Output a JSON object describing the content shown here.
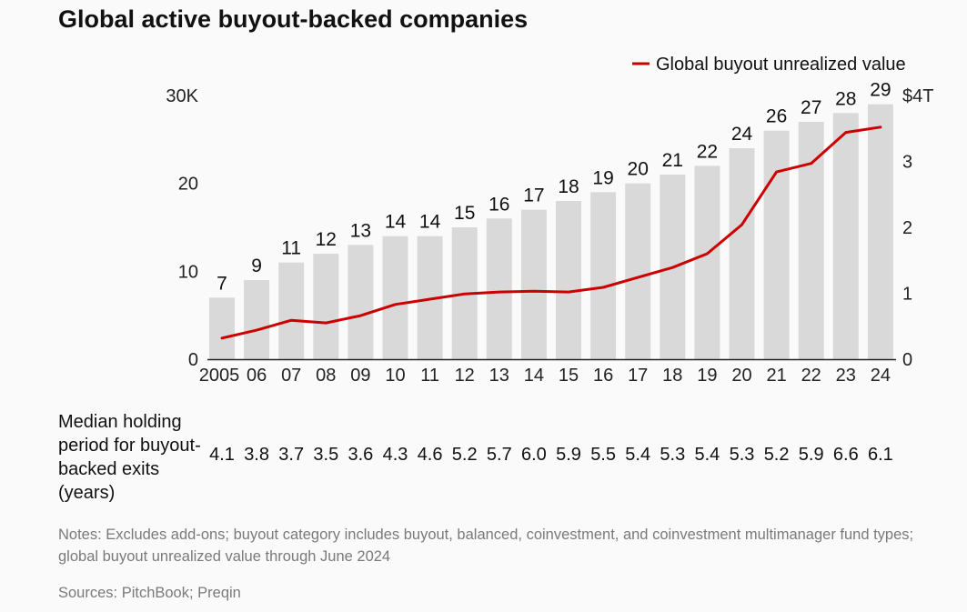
{
  "title": "Global active buyout-backed companies",
  "chart_data": {
    "type": "bar",
    "categories": [
      "2005",
      "06",
      "07",
      "08",
      "09",
      "10",
      "11",
      "12",
      "13",
      "14",
      "15",
      "16",
      "17",
      "18",
      "19",
      "20",
      "21",
      "22",
      "23",
      "24"
    ],
    "series": [
      {
        "type": "bar",
        "values": [
          7,
          9,
          11,
          12,
          13,
          14,
          14,
          15,
          16,
          17,
          18,
          19,
          20,
          21,
          22,
          24,
          26,
          27,
          28,
          29
        ],
        "color": "#d9d9d9",
        "axis": "left"
      },
      {
        "name": "Global buyout unrealized value",
        "type": "line",
        "values": [
          0.32,
          0.44,
          0.59,
          0.55,
          0.66,
          0.83,
          0.91,
          0.99,
          1.02,
          1.03,
          1.02,
          1.09,
          1.24,
          1.39,
          1.6,
          2.04,
          2.84,
          2.97,
          3.44,
          3.52
        ],
        "color": "#cc0000",
        "axis": "right"
      }
    ],
    "left_axis": {
      "ticks": [
        "0",
        "10",
        "20",
        "30K"
      ],
      "tick_values": [
        0,
        10,
        20,
        30
      ],
      "ylim": [
        0,
        30
      ]
    },
    "right_axis": {
      "ticks": [
        "0",
        "1",
        "2",
        "3",
        "$4T"
      ],
      "tick_values": [
        0,
        1,
        2,
        3,
        4
      ],
      "ylim": [
        0,
        4
      ]
    },
    "legend_position": "top-right",
    "grid": false
  },
  "holding_period": {
    "label": "Median holding period for buyout-backed exits (years)",
    "values": [
      "4.1",
      "3.8",
      "3.7",
      "3.5",
      "3.6",
      "4.3",
      "4.6",
      "5.2",
      "5.7",
      "6.0",
      "5.9",
      "5.5",
      "5.4",
      "5.3",
      "5.4",
      "5.3",
      "5.2",
      "5.9",
      "6.6",
      "6.1"
    ]
  },
  "notes": "Notes: Excludes add-ons; buyout category includes buyout, balanced, coinvestment, and coinvestment multimanager fund types; global buyout unrealized value through June 2024",
  "sources": "Sources: PitchBook; Preqin"
}
